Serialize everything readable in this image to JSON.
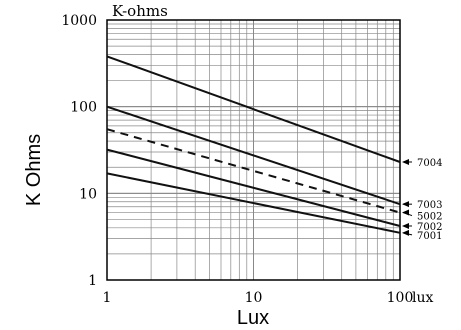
{
  "chart_data": {
    "type": "line",
    "title": "K-ohms",
    "xlabel": "Lux",
    "ylabel": "K Ohms",
    "x_unit_label": "lux",
    "xscale": "log",
    "yscale": "log",
    "xlim": [
      1,
      100
    ],
    "ylim": [
      1,
      1000
    ],
    "x_ticks": [
      "1",
      "10",
      "100"
    ],
    "y_ticks": [
      "1",
      "10",
      "100",
      "1000"
    ],
    "grid": true,
    "legend": "direct labels at right end of lines with arrows",
    "series": [
      {
        "name": "7004",
        "style": "solid",
        "x": [
          1,
          100
        ],
        "y": [
          380,
          23
        ]
      },
      {
        "name": "7003",
        "style": "solid",
        "x": [
          1,
          100
        ],
        "y": [
          100,
          7.5
        ]
      },
      {
        "name": "5002",
        "style": "dashed",
        "x": [
          1,
          100
        ],
        "y": [
          55,
          6
        ]
      },
      {
        "name": "7002",
        "style": "solid",
        "x": [
          1,
          100
        ],
        "y": [
          32,
          4.2
        ]
      },
      {
        "name": "7001",
        "style": "solid",
        "x": [
          1,
          100
        ],
        "y": [
          17,
          3.5
        ]
      }
    ]
  }
}
